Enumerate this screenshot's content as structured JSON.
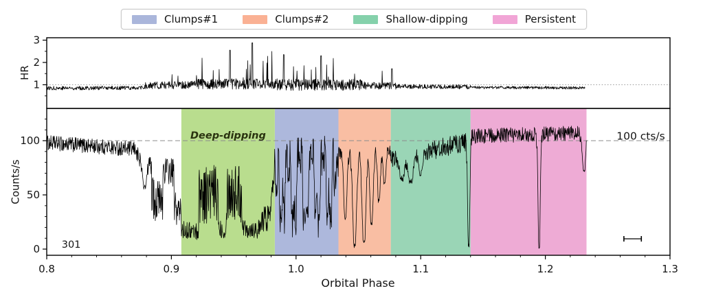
{
  "legend": {
    "items": [
      {
        "label": "Clumps#1",
        "color": "#aab6db"
      },
      {
        "label": "Clumps#2",
        "color": "#fab194"
      },
      {
        "label": "Shallow-dipping",
        "color": "#85d1ab"
      },
      {
        "label": "Persistent",
        "color": "#f1a5d6"
      }
    ]
  },
  "chart_data": [
    {
      "type": "line",
      "id": "hr-panel",
      "ylabel": "HR",
      "xlim": [
        0.8,
        1.3
      ],
      "ylim": [
        0,
        3.15
      ],
      "yticks": [
        1,
        2,
        3
      ],
      "ytick_minor_step": 0.5,
      "grid": false,
      "line_color": "#000000",
      "reference_line": {
        "y": 1.0,
        "style": "dotted",
        "color": "#9a9a9a"
      },
      "x_data_range": [
        0.8,
        1.232
      ],
      "segments": [
        [
          0.8,
          0.878,
          0.85,
          0.86,
          0.09,
          0,
          0
        ],
        [
          0.878,
          0.92,
          0.95,
          1.0,
          0.17,
          0.02,
          1.8
        ],
        [
          0.92,
          0.985,
          1.02,
          1.05,
          0.24,
          0.045,
          2.5
        ],
        [
          0.985,
          1.055,
          1.0,
          1.0,
          0.26,
          0.05,
          2.2
        ],
        [
          1.055,
          1.08,
          0.95,
          0.95,
          0.16,
          0.02,
          1.8
        ],
        [
          1.08,
          1.14,
          0.93,
          0.9,
          0.1,
          0.006,
          1.45
        ],
        [
          1.14,
          1.232,
          0.88,
          0.86,
          0.065,
          0,
          0
        ]
      ],
      "fixed_spikes": [
        [
          0.947,
          2.55
        ],
        [
          0.965,
          2.88
        ],
        [
          0.99,
          2.35
        ],
        [
          1.02,
          2.3
        ],
        [
          1.077,
          1.72
        ]
      ]
    },
    {
      "type": "line",
      "id": "counts-panel",
      "ylabel": "Counts/s",
      "xlabel": "Orbital Phase",
      "xlim": [
        0.8,
        1.3
      ],
      "ylim": [
        -5,
        130
      ],
      "xticks": [
        "0.8",
        "0.9",
        "1.0",
        "1.1",
        "1.2",
        "1.3"
      ],
      "xtick_values": [
        0.8,
        0.9,
        1.0,
        1.1,
        1.2,
        1.3
      ],
      "xtick_minor_step": 0.02,
      "yticks": [
        0,
        50,
        100
      ],
      "ytick_minor_step": 10,
      "grid": false,
      "line_color": "#000000",
      "reference_line": {
        "y": 100,
        "style": "dashed",
        "color": "#8c8c8c",
        "label": "100 cts/s"
      },
      "x_data_range": [
        0.8,
        1.233
      ],
      "bands": [
        {
          "label": "Deep-dipping",
          "x0": 0.908,
          "x1": 0.983,
          "color": "#b9dd8e",
          "in_legend": false
        },
        {
          "label": "Clumps#1",
          "x0": 0.983,
          "x1": 1.034,
          "color": "#adb8dc",
          "in_legend": true
        },
        {
          "label": "Clumps#2",
          "x0": 1.034,
          "x1": 1.076,
          "color": "#f9bea3",
          "in_legend": true
        },
        {
          "label": "Shallow-dipping",
          "x0": 1.076,
          "x1": 1.14,
          "color": "#9ad5b6",
          "in_legend": true
        },
        {
          "label": "Persistent",
          "x0": 1.14,
          "x1": 1.233,
          "color": "#eeabd5",
          "in_legend": true
        }
      ],
      "segments": [
        [
          0.8,
          0.872,
          98,
          92,
          7,
          0,
          0
        ],
        [
          0.872,
          0.884,
          86,
          78,
          9,
          0,
          0
        ],
        [
          0.884,
          0.893,
          48,
          42,
          20,
          0,
          0
        ],
        [
          0.893,
          0.902,
          74,
          70,
          13,
          0,
          0
        ],
        [
          0.902,
          0.908,
          40,
          32,
          16,
          0,
          0
        ],
        [
          0.908,
          0.922,
          18,
          16,
          8,
          0,
          0
        ],
        [
          0.922,
          0.938,
          52,
          50,
          28,
          0,
          0
        ],
        [
          0.938,
          0.944,
          20,
          18,
          9,
          0,
          0
        ],
        [
          0.944,
          0.957,
          55,
          50,
          28,
          0,
          0
        ],
        [
          0.957,
          0.972,
          20,
          18,
          9,
          0,
          0
        ],
        [
          0.972,
          0.98,
          26,
          32,
          13,
          0,
          0
        ],
        [
          0.98,
          0.983,
          55,
          85,
          18,
          0,
          0
        ],
        [
          0.983,
          1.034,
          58,
          58,
          16,
          32,
          0.009
        ],
        [
          1.034,
          1.076,
          88,
          90,
          8,
          0,
          0
        ],
        [
          1.076,
          1.14,
          82,
          100,
          9,
          0,
          0
        ],
        [
          1.14,
          1.233,
          104,
          107,
          7,
          0,
          0
        ]
      ],
      "dips": [
        [
          0.8785,
          58,
          0.0015
        ],
        [
          1.0395,
          30,
          0.0012
        ],
        [
          1.047,
          4,
          0.0014
        ],
        [
          1.0545,
          8,
          0.0014
        ],
        [
          1.0605,
          25,
          0.0012
        ],
        [
          1.0665,
          45,
          0.001
        ],
        [
          1.071,
          60,
          0.001
        ],
        [
          1.085,
          65,
          0.0018
        ],
        [
          1.092,
          62,
          0.0018
        ],
        [
          1.1,
          70,
          0.0015
        ],
        [
          1.1385,
          3,
          0.0008
        ],
        [
          1.195,
          2,
          0.0008
        ],
        [
          1.231,
          72,
          0.0012
        ]
      ],
      "annotations": {
        "deep_dipping_label": {
          "text": "Deep-dipping",
          "x": 0.9455,
          "y": 105,
          "color": "#2a330f",
          "style": "bold-italic"
        },
        "ref_line_label": {
          "text": "100 cts/s",
          "x": 1.296,
          "y": 104,
          "color": "#141414",
          "align": "end"
        },
        "obs_id": {
          "text": "301",
          "x": 0.812,
          "y": 4.5,
          "color": "#141414",
          "align": "start"
        },
        "error_bar": {
          "x": 1.27,
          "y": 9.5,
          "half_width": 0.007
        }
      }
    }
  ]
}
